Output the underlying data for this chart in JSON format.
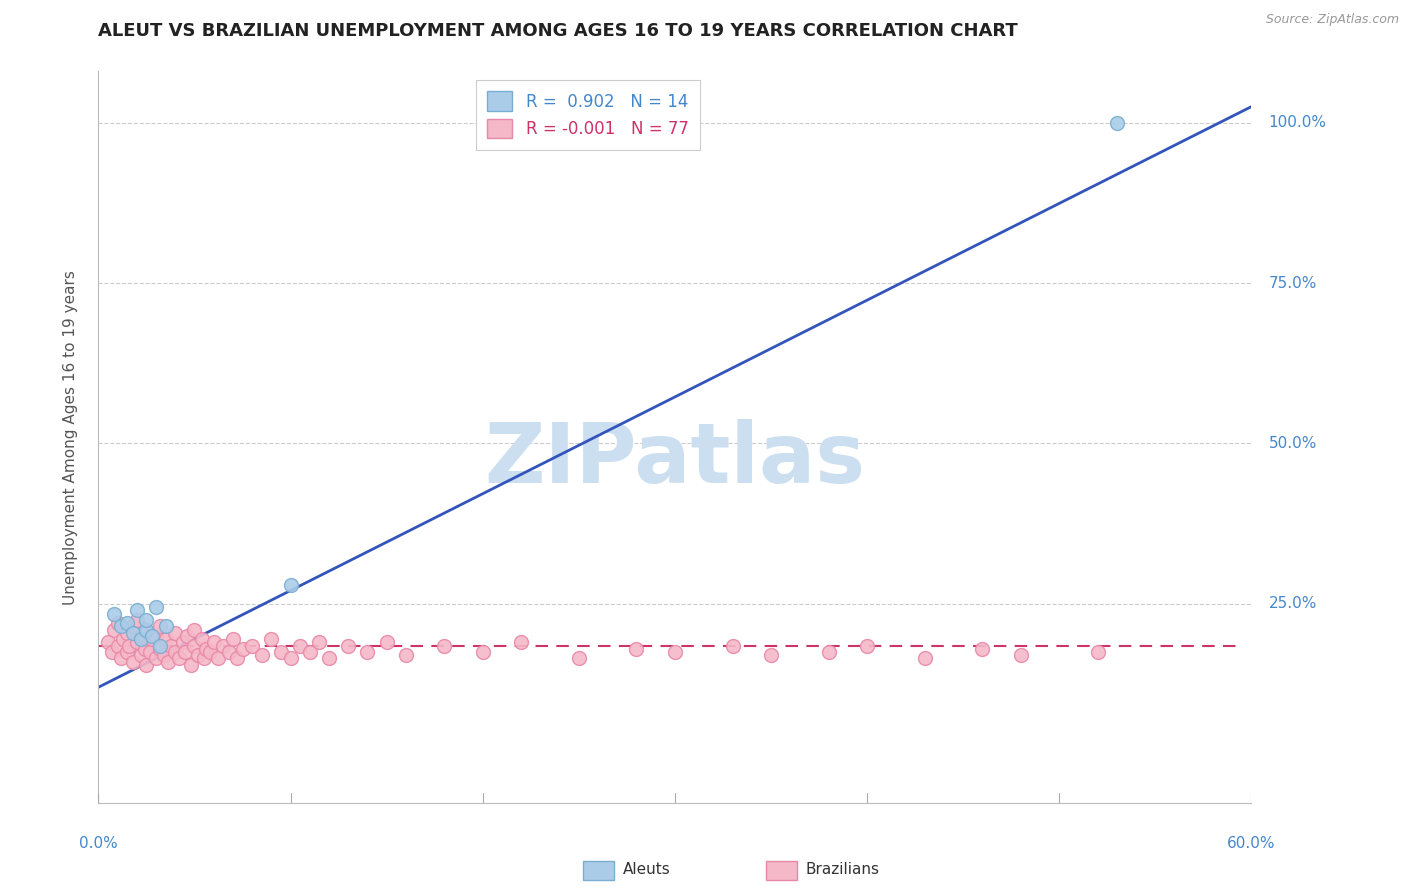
{
  "title": "ALEUT VS BRAZILIAN UNEMPLOYMENT AMONG AGES 16 TO 19 YEARS CORRELATION CHART",
  "source_text": "Source: ZipAtlas.com",
  "ylabel": "Unemployment Among Ages 16 to 19 years",
  "xmin": 0.0,
  "xmax": 0.6,
  "ymin": -0.06,
  "ymax": 1.08,
  "yticks": [
    0.25,
    0.5,
    0.75,
    1.0
  ],
  "ytick_labels": [
    "25.0%",
    "50.0%",
    "75.0%",
    "100.0%"
  ],
  "aleut_R": 0.902,
  "aleut_N": 14,
  "brazilian_R": -0.001,
  "brazilian_N": 77,
  "aleut_color": "#aacce8",
  "aleut_edge_color": "#7aaed0",
  "brazilian_color": "#f5b8c8",
  "brazilian_edge_color": "#e888a8",
  "trend_aleut_color": "#3355bb",
  "trend_brazilian_color": "#cc3366",
  "watermark_color": "#ccdff0",
  "grid_color": "#cccccc",
  "axis_label_color": "#4488cc",
  "title_color": "#222222",
  "aleut_points_x": [
    0.008,
    0.012,
    0.015,
    0.018,
    0.02,
    0.022,
    0.025,
    0.025,
    0.028,
    0.03,
    0.032,
    0.035,
    0.1,
    0.53
  ],
  "aleut_points_y": [
    0.235,
    0.215,
    0.22,
    0.205,
    0.24,
    0.195,
    0.21,
    0.225,
    0.2,
    0.245,
    0.185,
    0.215,
    0.28,
    1.0
  ],
  "brazilian_points_x": [
    0.005,
    0.007,
    0.008,
    0.01,
    0.01,
    0.012,
    0.013,
    0.015,
    0.015,
    0.016,
    0.018,
    0.018,
    0.02,
    0.02,
    0.022,
    0.022,
    0.024,
    0.025,
    0.025,
    0.027,
    0.028,
    0.03,
    0.03,
    0.032,
    0.032,
    0.034,
    0.035,
    0.036,
    0.038,
    0.04,
    0.04,
    0.042,
    0.044,
    0.045,
    0.046,
    0.048,
    0.05,
    0.05,
    0.052,
    0.054,
    0.055,
    0.056,
    0.058,
    0.06,
    0.062,
    0.065,
    0.068,
    0.07,
    0.072,
    0.075,
    0.08,
    0.085,
    0.09,
    0.095,
    0.1,
    0.105,
    0.11,
    0.115,
    0.12,
    0.13,
    0.14,
    0.15,
    0.16,
    0.18,
    0.2,
    0.22,
    0.25,
    0.28,
    0.3,
    0.33,
    0.35,
    0.38,
    0.4,
    0.43,
    0.46,
    0.48,
    0.52
  ],
  "brazilian_points_y": [
    0.19,
    0.175,
    0.21,
    0.185,
    0.22,
    0.165,
    0.195,
    0.175,
    0.205,
    0.185,
    0.215,
    0.16,
    0.19,
    0.225,
    0.17,
    0.2,
    0.18,
    0.155,
    0.21,
    0.175,
    0.195,
    0.165,
    0.2,
    0.18,
    0.215,
    0.17,
    0.195,
    0.16,
    0.185,
    0.175,
    0.205,
    0.165,
    0.19,
    0.175,
    0.2,
    0.155,
    0.185,
    0.21,
    0.17,
    0.195,
    0.165,
    0.18,
    0.175,
    0.19,
    0.165,
    0.185,
    0.175,
    0.195,
    0.165,
    0.18,
    0.185,
    0.17,
    0.195,
    0.175,
    0.165,
    0.185,
    0.175,
    0.19,
    0.165,
    0.185,
    0.175,
    0.19,
    0.17,
    0.185,
    0.175,
    0.19,
    0.165,
    0.18,
    0.175,
    0.185,
    0.17,
    0.175,
    0.185,
    0.165,
    0.18,
    0.17,
    0.175
  ],
  "aleut_trend_x": [
    -0.01,
    0.6
  ],
  "aleut_trend_y": [
    0.105,
    1.025
  ],
  "brazilian_trend_x": [
    0.0,
    0.595
  ],
  "brazilian_trend_y": [
    0.185,
    0.185
  ],
  "title_fontsize": 13,
  "axis_label_fontsize": 11,
  "tick_fontsize": 11,
  "legend_fontsize": 12,
  "marker_size": 100,
  "watermark_fontsize": 60,
  "background_color": "#ffffff"
}
